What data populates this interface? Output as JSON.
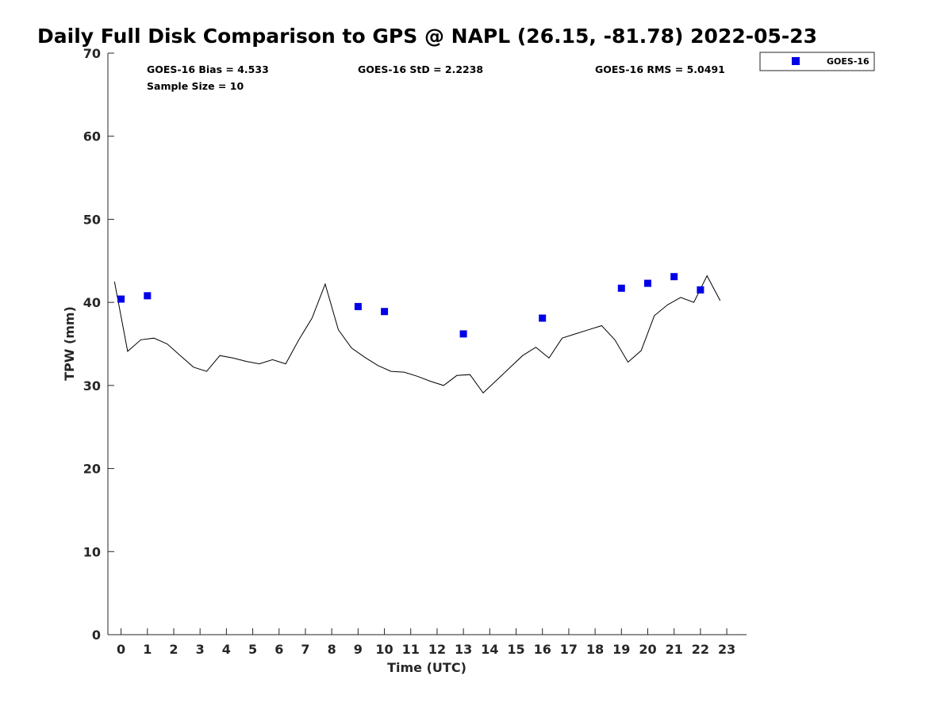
{
  "title": "Daily Full Disk Comparison to GPS @ NAPL (26.15, -81.78) 2022-05-23",
  "stats": {
    "bias": "GOES-16 Bias = 4.533",
    "std": "GOES-16 StD = 2.2238",
    "rms": "GOES-16 RMS = 5.0491",
    "sample": "Sample Size = 10"
  },
  "legend": {
    "label": "GOES-16"
  },
  "colors": {
    "marker": "#0000e6",
    "line": "#000000",
    "axis": "#262626"
  },
  "chart_data": {
    "type": "line",
    "xlabel": "Time (UTC)",
    "ylabel": "TPW (mm)",
    "xlim": [
      -0.5,
      23.75
    ],
    "ylim": [
      0,
      70
    ],
    "xticks": [
      0,
      1,
      2,
      3,
      4,
      5,
      6,
      7,
      8,
      9,
      10,
      11,
      12,
      13,
      14,
      15,
      16,
      17,
      18,
      19,
      20,
      21,
      22,
      23
    ],
    "yticks": [
      0,
      10,
      20,
      30,
      40,
      50,
      60,
      70
    ],
    "grid": false,
    "legend_position": "top-right outside",
    "series": [
      {
        "kind": "line",
        "x": [
          -0.25,
          0.25,
          0.75,
          1.25,
          1.75,
          2.25,
          2.75,
          3.25,
          3.75,
          4.25,
          4.75,
          5.25,
          5.75,
          6.25,
          6.75,
          7.25,
          7.75,
          8.25,
          8.75,
          9.25,
          9.75,
          10.25,
          10.75,
          11.25,
          11.75,
          12.25,
          12.75,
          13.25,
          13.75,
          14.25,
          14.75,
          15.25,
          15.75,
          16.25,
          16.75,
          17.25,
          17.75,
          18.25,
          18.75,
          19.25,
          19.75,
          20.25,
          20.75,
          21.25,
          21.75,
          22.25,
          22.75
        ],
        "y": [
          42.5,
          34.1,
          35.5,
          35.7,
          35.0,
          33.6,
          32.2,
          31.7,
          33.6,
          33.3,
          32.9,
          32.6,
          33.1,
          32.6,
          35.5,
          38.1,
          42.2,
          36.7,
          34.5,
          33.4,
          32.4,
          31.7,
          31.6,
          31.1,
          30.5,
          30.0,
          31.2,
          31.3,
          29.1,
          30.6,
          32.1,
          33.6,
          34.6,
          33.3,
          35.7,
          36.2,
          36.7,
          37.2,
          35.5,
          32.8,
          34.2,
          38.4,
          39.7,
          40.6,
          40.0,
          43.2,
          40.2
        ]
      },
      {
        "name": "GOES-16",
        "kind": "scatter",
        "x": [
          0,
          1,
          9,
          10,
          13,
          16,
          19,
          20,
          21,
          22
        ],
        "y": [
          40.4,
          40.8,
          39.5,
          38.9,
          36.2,
          38.1,
          41.7,
          42.3,
          43.1,
          41.5
        ]
      }
    ]
  }
}
